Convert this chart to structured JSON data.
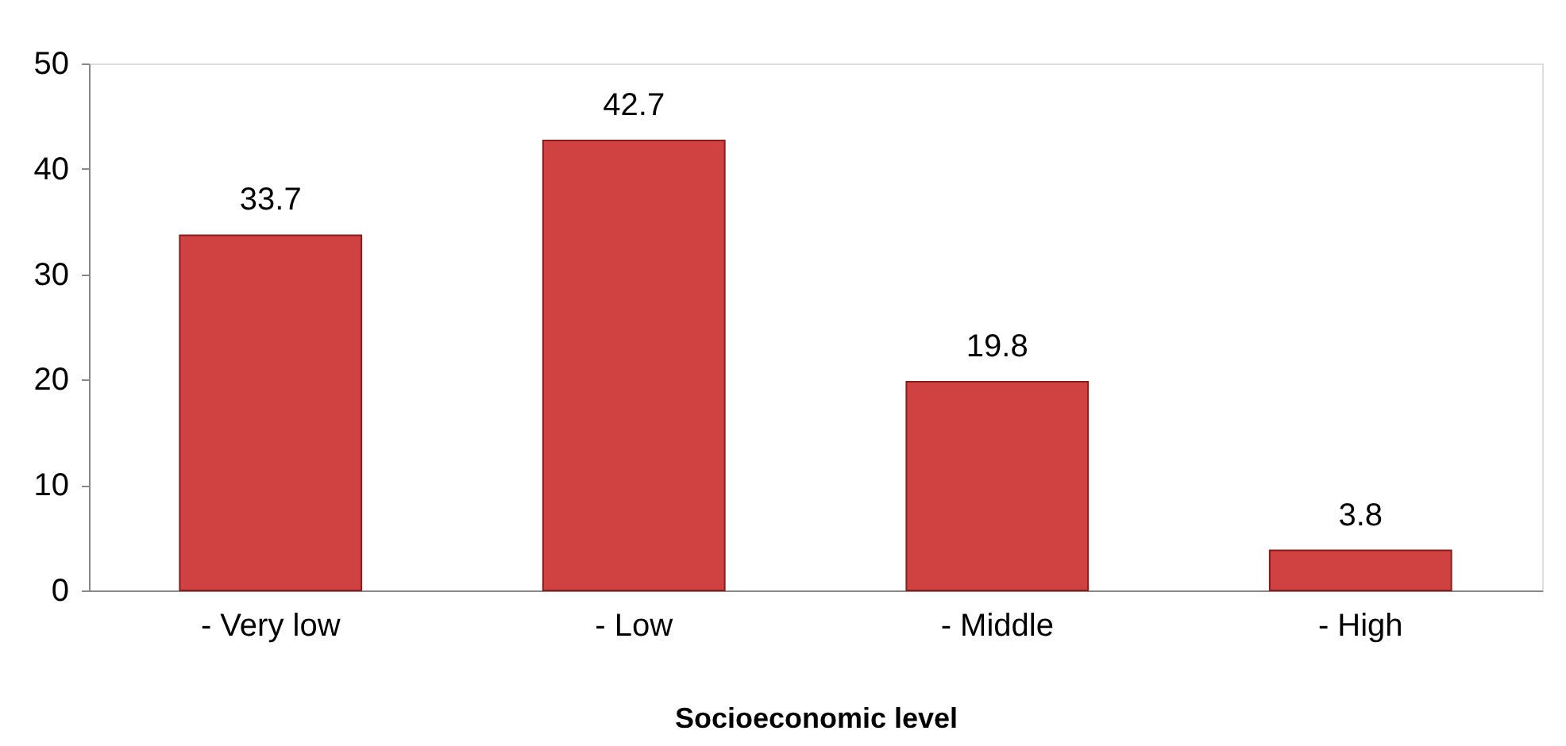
{
  "chart_data": {
    "type": "bar",
    "categories": [
      "- Very low",
      "- Low",
      "- Middle",
      "- High"
    ],
    "values": [
      33.7,
      42.7,
      19.8,
      3.8
    ],
    "color": "#d04242",
    "xlabel": "Socioeconomic level",
    "ylim": [
      0,
      50
    ],
    "yticks": [
      0,
      10,
      20,
      30,
      40,
      50
    ],
    "data_labels": true,
    "grid": false
  }
}
